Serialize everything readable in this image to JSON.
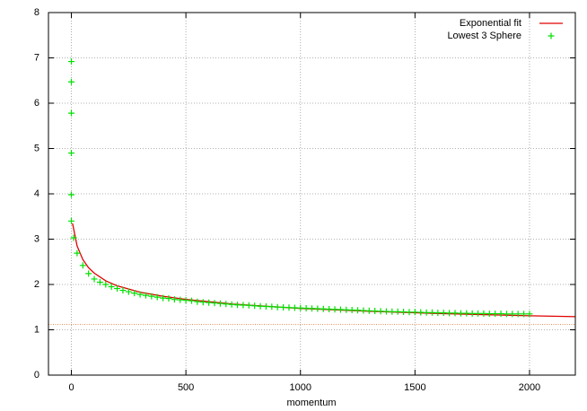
{
  "chart_data": {
    "type": "line",
    "xlabel": "momentum",
    "xlim": [
      -100,
      2200
    ],
    "ylim": [
      0,
      8
    ],
    "xticks": [
      0,
      500,
      1000,
      1500,
      2000
    ],
    "yticks": [
      0,
      1,
      2,
      3,
      4,
      5,
      6,
      7,
      8
    ],
    "grid": true,
    "legend": "upper right",
    "hline": {
      "value": 1.12,
      "color": "#e08040"
    },
    "series": [
      {
        "name": "Exponential fit",
        "color": "#e00000",
        "style": "line",
        "x": [
          5,
          25,
          50,
          75,
          100,
          150,
          200,
          300,
          400,
          500,
          700,
          1000,
          1300,
          1600,
          2000,
          2200
        ],
        "values": [
          3.35,
          2.85,
          2.55,
          2.37,
          2.25,
          2.08,
          1.97,
          1.83,
          1.74,
          1.67,
          1.57,
          1.47,
          1.41,
          1.36,
          1.31,
          1.29
        ]
      },
      {
        "name": "Lowest 3 Sphere",
        "color": "#00e000",
        "style": "points",
        "x": [
          0,
          0,
          0,
          0,
          0,
          0,
          10,
          25,
          50,
          75,
          100,
          125,
          150,
          175,
          200,
          225,
          250,
          275,
          300,
          325,
          350,
          375,
          400,
          425,
          450,
          475,
          500,
          525,
          550,
          575,
          600,
          625,
          650,
          675,
          700,
          725,
          750,
          775,
          800,
          825,
          850,
          875,
          900,
          925,
          950,
          975,
          1000,
          1025,
          1050,
          1075,
          1100,
          1125,
          1150,
          1175,
          1200,
          1225,
          1250,
          1275,
          1300,
          1325,
          1350,
          1375,
          1400,
          1425,
          1450,
          1475,
          1500,
          1525,
          1550,
          1575,
          1600,
          1625,
          1650,
          1675,
          1700,
          1725,
          1750,
          1775,
          1800,
          1825,
          1850,
          1875,
          1900,
          1925,
          1950,
          1975,
          2000
        ],
        "values": [
          6.92,
          6.47,
          5.78,
          4.9,
          3.98,
          3.4,
          3.03,
          2.69,
          2.42,
          2.24,
          2.12,
          2.05,
          2.0,
          1.95,
          1.91,
          1.87,
          1.84,
          1.81,
          1.78,
          1.76,
          1.74,
          1.72,
          1.7,
          1.69,
          1.67,
          1.66,
          1.65,
          1.64,
          1.62,
          1.61,
          1.6,
          1.59,
          1.58,
          1.57,
          1.56,
          1.55,
          1.545,
          1.54,
          1.53,
          1.52,
          1.515,
          1.51,
          1.5,
          1.495,
          1.49,
          1.485,
          1.48,
          1.475,
          1.47,
          1.465,
          1.46,
          1.455,
          1.45,
          1.445,
          1.44,
          1.435,
          1.43,
          1.425,
          1.42,
          1.415,
          1.41,
          1.405,
          1.4,
          1.4,
          1.395,
          1.39,
          1.39,
          1.385,
          1.38,
          1.38,
          1.375,
          1.375,
          1.37,
          1.37,
          1.365,
          1.365,
          1.36,
          1.36,
          1.36,
          1.355,
          1.355,
          1.355,
          1.35,
          1.35,
          1.35,
          1.35,
          1.35
        ]
      }
    ]
  }
}
